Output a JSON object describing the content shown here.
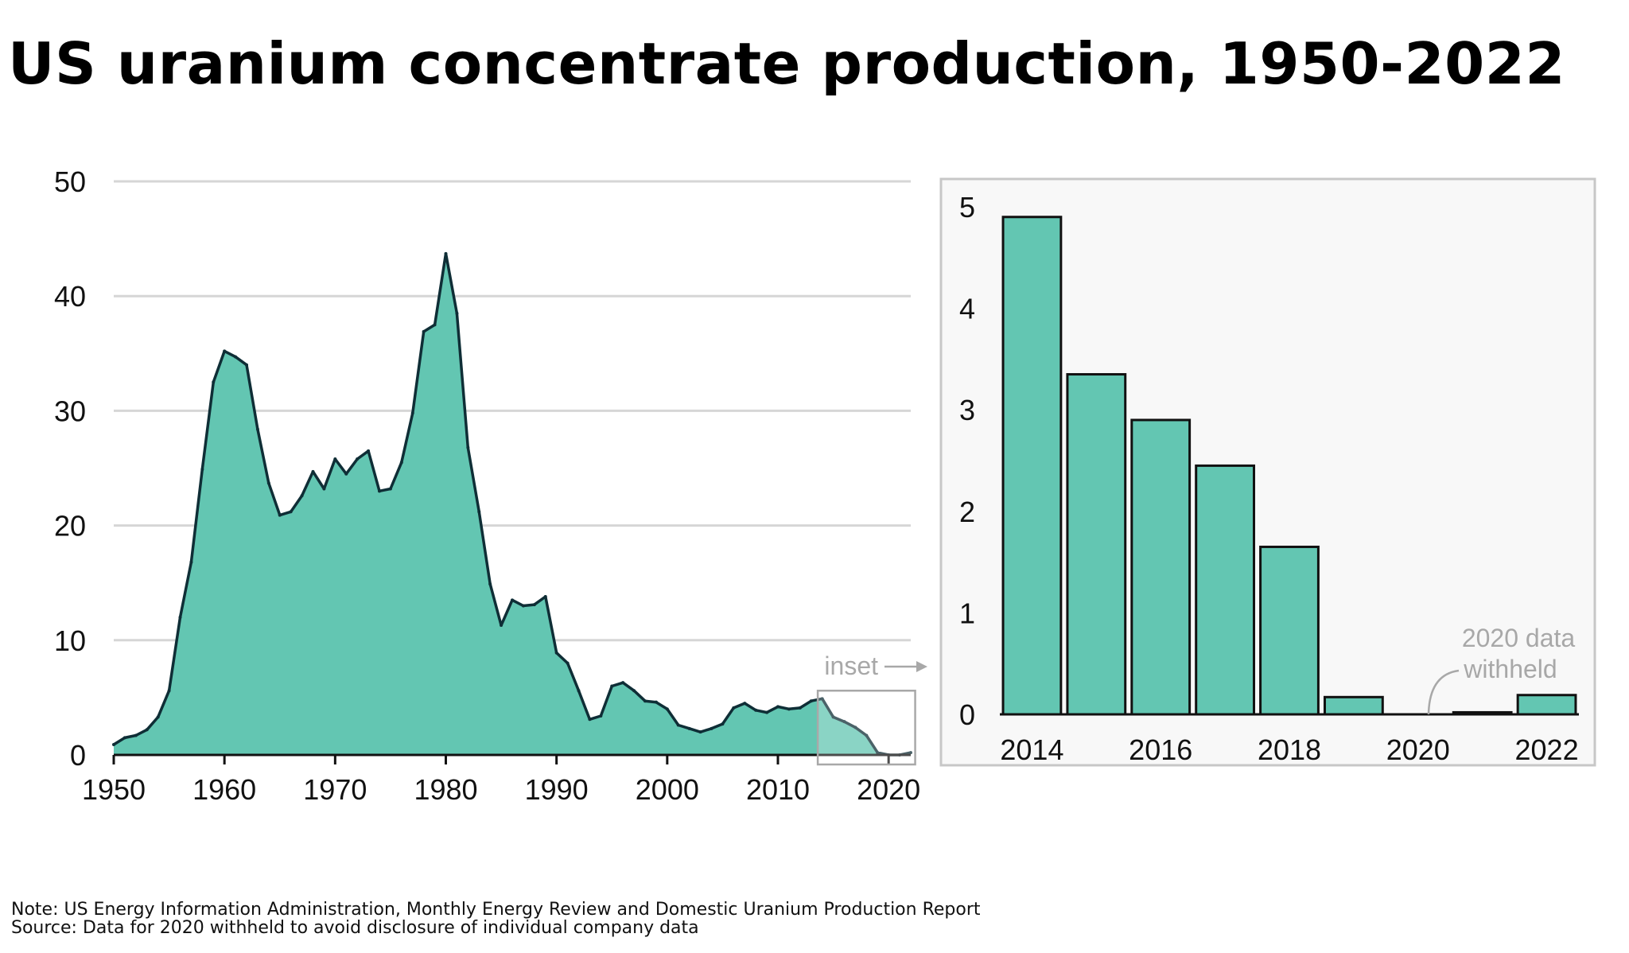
{
  "title": "US uranium concentrate production, 1950-2022",
  "note": "Note: US Energy Information Administration, Monthly Energy Review and Domestic Uranium Production Report",
  "source": "Source: Data for 2020 withheld to avoid disclosure of individual company data",
  "colors": {
    "fill": "#63c6b2",
    "stroke": "#0f2e36",
    "grid": "#d6d6d6",
    "annotation": "#a8a8a8",
    "inset_bg": "#f8f8f8"
  },
  "chart_data": [
    {
      "type": "area",
      "x": [
        1950,
        1951,
        1952,
        1953,
        1954,
        1955,
        1956,
        1957,
        1958,
        1959,
        1960,
        1961,
        1962,
        1963,
        1964,
        1965,
        1966,
        1967,
        1968,
        1969,
        1970,
        1971,
        1972,
        1973,
        1974,
        1975,
        1976,
        1977,
        1978,
        1979,
        1980,
        1981,
        1982,
        1983,
        1984,
        1985,
        1986,
        1987,
        1988,
        1989,
        1990,
        1991,
        1992,
        1993,
        1994,
        1995,
        1996,
        1997,
        1998,
        1999,
        2000,
        2001,
        2002,
        2003,
        2004,
        2005,
        2006,
        2007,
        2008,
        2009,
        2010,
        2011,
        2012,
        2013,
        2014,
        2015,
        2016,
        2017,
        2018,
        2019,
        2020,
        2021,
        2022
      ],
      "values": [
        0.9,
        1.5,
        1.7,
        2.2,
        3.3,
        5.6,
        12.0,
        16.8,
        24.9,
        32.5,
        35.2,
        34.7,
        34.0,
        28.4,
        23.7,
        20.9,
        21.2,
        22.6,
        24.7,
        23.2,
        25.8,
        24.5,
        25.8,
        26.5,
        23.0,
        23.2,
        25.5,
        29.8,
        36.9,
        37.5,
        43.7,
        38.5,
        26.8,
        21.2,
        14.9,
        11.3,
        13.5,
        13.0,
        13.1,
        13.8,
        8.9,
        8.0,
        5.6,
        3.1,
        3.4,
        6.0,
        6.3,
        5.6,
        4.7,
        4.6,
        4.0,
        2.6,
        2.3,
        2.0,
        2.3,
        2.7,
        4.1,
        4.5,
        3.9,
        3.7,
        4.2,
        4.0,
        4.1,
        4.7,
        4.9,
        3.3,
        2.9,
        2.4,
        1.7,
        0.2,
        0.0,
        0.0,
        0.2
      ],
      "xticks": [
        "1950",
        "1960",
        "1970",
        "1980",
        "1990",
        "2000",
        "2010",
        "2020"
      ],
      "yticks": [
        "0",
        "10",
        "20",
        "30",
        "40",
        "50"
      ],
      "xlim": [
        1950,
        2022
      ],
      "ylim": [
        0,
        50
      ],
      "grid": true,
      "annotation": "inset"
    },
    {
      "type": "bar",
      "categories": [
        2014,
        2015,
        2016,
        2017,
        2018,
        2019,
        2020,
        2021,
        2022
      ],
      "values": [
        4.9,
        3.35,
        2.9,
        2.45,
        1.65,
        0.17,
        null,
        0.02,
        0.19
      ],
      "xticks": [
        "2014",
        "2016",
        "2018",
        "2020",
        "2022"
      ],
      "yticks": [
        "0",
        "1",
        "2",
        "3",
        "4",
        "5"
      ],
      "ylim": [
        0,
        5
      ],
      "annotation": "2020 data\nwithheld",
      "annotation_lines": [
        "2020 data",
        "withheld"
      ]
    }
  ]
}
